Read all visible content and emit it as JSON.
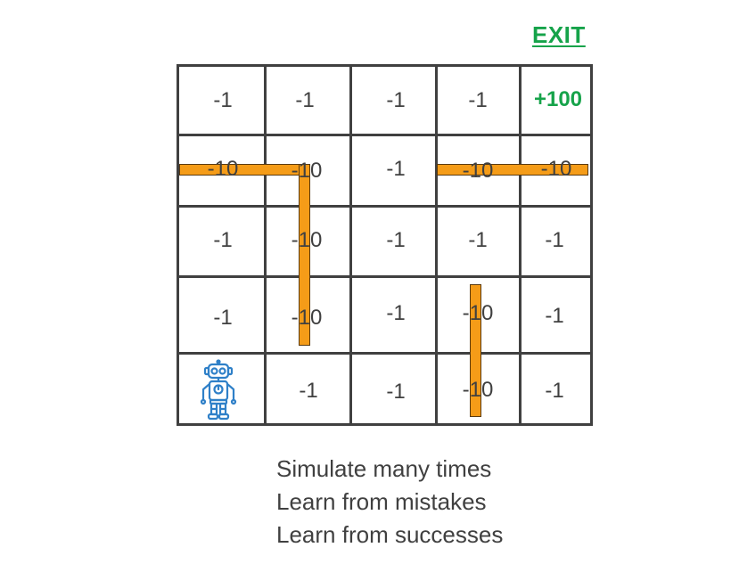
{
  "exit_label": "EXIT",
  "grid": {
    "rows": [
      [
        "-1",
        "-1",
        "-1",
        "-1",
        "+100"
      ],
      [
        "-10",
        "-10",
        "-1",
        "-10",
        "-10"
      ],
      [
        "-1",
        "-10",
        "-1",
        "-1",
        "-1"
      ],
      [
        "-1",
        "-10",
        "-1",
        "-10",
        "-1"
      ],
      [
        "",
        "-1",
        "-1",
        "-10",
        "-1"
      ]
    ],
    "goal_color": "#16a34a",
    "wall_color": "#f59c18",
    "agent_icon": "robot-icon"
  },
  "caption": {
    "line1": "Simulate many times",
    "line2": "Learn from mistakes",
    "line3": "Learn from successes"
  }
}
